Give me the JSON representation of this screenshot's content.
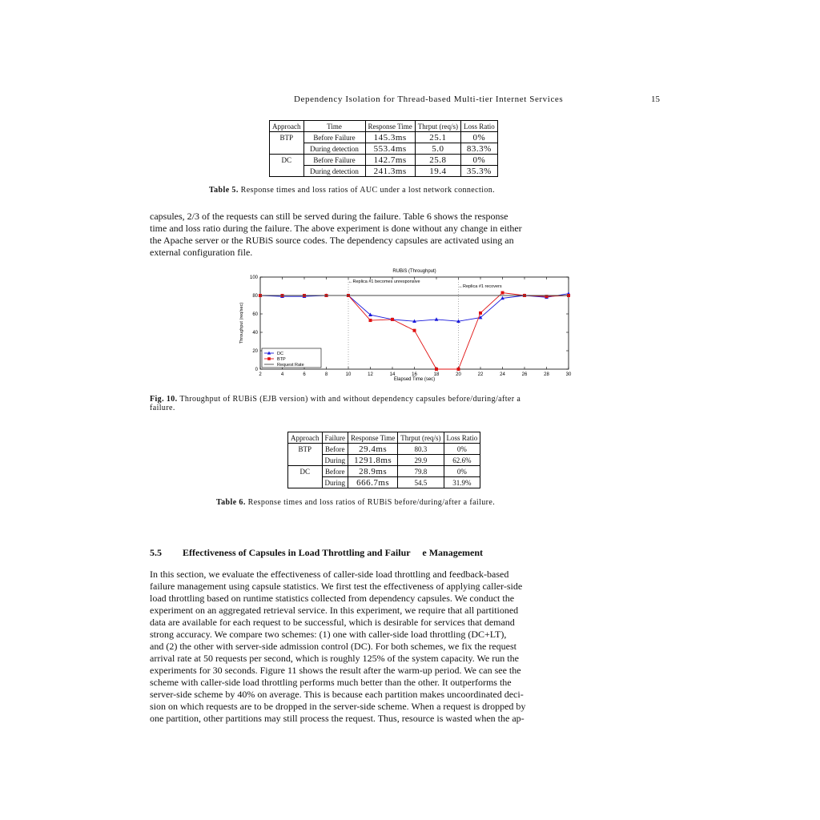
{
  "header": {
    "running_title": "Dependency Isolation for Thread-based Multi-tier Internet Services",
    "page_number": "15"
  },
  "table5": {
    "headers": [
      "Approach",
      "Time",
      "Response Time",
      "Thrput (req/s)",
      "Loss Ratio"
    ],
    "rows": [
      [
        "BTP",
        "Before Failure",
        "145.3ms",
        "25.1",
        "0%"
      ],
      [
        "",
        "During detection",
        "553.4ms",
        "5.0",
        "83.3%"
      ],
      [
        "DC",
        "Before Failure",
        "142.7ms",
        "25.8",
        "0%"
      ],
      [
        "",
        "During detection",
        "241.3ms",
        "19.4",
        "35.3%"
      ]
    ],
    "caption_label": "Table 5.",
    "caption_text": "Response times and loss ratios of AUC under a lost network connection."
  },
  "paragraph1": [
    "capsules, 2/3 of the requests can still be served during the failure. Table 6 shows the response",
    "time and loss ratio during the failure. The above experiment is done without any change in either",
    "the Apache server or the RUBiS source codes. The dependency capsules are activated using an",
    "external configuration file."
  ],
  "chart_data": {
    "type": "line",
    "title": "RUBiS (Throughput)",
    "xlabel": "Elapsed Time (sec)",
    "ylabel": "Throughput (req/sec)",
    "xlim": [
      2,
      30
    ],
    "ylim": [
      0,
      100
    ],
    "xticks": [
      2,
      4,
      6,
      8,
      10,
      12,
      14,
      16,
      18,
      20,
      22,
      24,
      26,
      28,
      30
    ],
    "yticks": [
      0,
      20,
      40,
      60,
      80,
      100
    ],
    "annotations": [
      {
        "text": "←Replica #1 becomes unresponsive",
        "x": 10
      },
      {
        "text": "←Replica #1 recovers",
        "x": 20
      }
    ],
    "legend_position": "bottom-left",
    "series": [
      {
        "name": "DC",
        "color": "#1a1adb",
        "marker": "triangle",
        "x": [
          2,
          4,
          6,
          8,
          10,
          12,
          14,
          16,
          18,
          20,
          22,
          24,
          26,
          28,
          30
        ],
        "y": [
          80,
          79,
          79,
          80,
          80,
          59,
          54,
          52,
          54,
          52,
          56,
          77,
          80,
          78,
          82
        ]
      },
      {
        "name": "BTP",
        "color": "#e01010",
        "marker": "square",
        "x": [
          2,
          4,
          6,
          8,
          10,
          12,
          14,
          16,
          18,
          20,
          22,
          24,
          26,
          28,
          30
        ],
        "y": [
          80,
          80,
          80,
          80,
          80,
          53,
          54,
          42,
          0,
          0,
          61,
          83,
          80,
          79,
          80
        ]
      },
      {
        "name": "Request Rate",
        "color": "#444444",
        "marker": "none",
        "x": [
          2,
          30
        ],
        "y": [
          80,
          80
        ]
      }
    ]
  },
  "figure10": {
    "caption_label": "Fig. 10.",
    "caption_line1": "Throughput of RUBiS (EJB version) with and without dependency capsules before/during/after a",
    "caption_line2": "failure."
  },
  "table6": {
    "headers": [
      "Approach",
      "Failure",
      "Response Time",
      "Thrput (req/s)",
      "Loss Ratio"
    ],
    "rows": [
      [
        "BTP",
        "Before",
        "29.4ms",
        "80.3",
        "0%"
      ],
      [
        "",
        "During",
        "1291.8ms",
        "29.9",
        "62.6%"
      ],
      [
        "DC",
        "Before",
        "28.9ms",
        "79.8",
        "0%"
      ],
      [
        "",
        "During",
        "666.7ms",
        "54.5",
        "31.9%"
      ]
    ],
    "caption_label": "Table 6.",
    "caption_text": "Response times and loss ratios of RUBiS before/during/after a failure."
  },
  "section": {
    "number": "5.5",
    "title": "Effectiveness of Capsules in Load Throttling and Failur     e Management"
  },
  "paragraph2": [
    "In this section, we evaluate the effectiveness of caller-side load throttling and feedback-based",
    "failure management using capsule statistics. We first test the effectiveness of applying caller-side",
    "load throttling based on runtime statistics collected from dependency capsules. We conduct the",
    "experiment on an aggregated retrieval service. In this experiment, we require that all partitioned",
    "data are available for each request to be successful, which is desirable for services that demand",
    "strong accuracy. We compare two schemes: (1) one with caller-side load throttling (DC+LT),",
    "and (2) the other with server-side admission control (DC). For both schemes, we fix the request",
    "arrival rate at 50 requests per second, which is roughly 125% of the system capacity. We run the",
    "experiments for 30 seconds. Figure 11 shows the result after the warm-up period. We can see the",
    "scheme with caller-side load throttling performs much better than the other. It outperforms the",
    "server-side scheme by 40% on average. This is because each partition makes uncoordinated deci-",
    "sion on which requests are to be dropped in the server-side scheme. When a request is dropped by",
    "one partition, other partitions may still process the request. Thus, resource is wasted when the ap-"
  ]
}
